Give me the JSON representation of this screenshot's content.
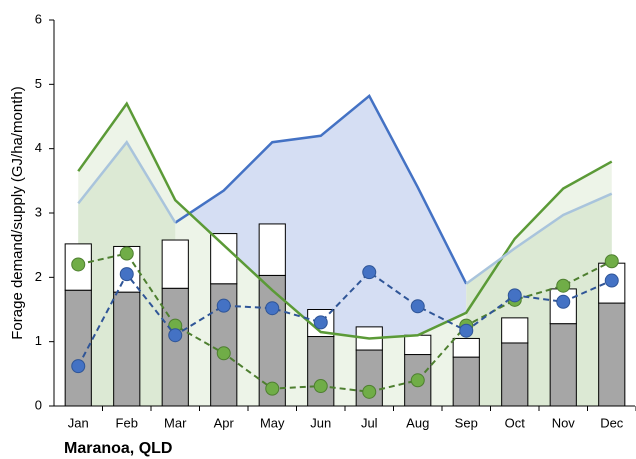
{
  "chart_data": {
    "type": "combo",
    "x_label": "Maranoa, QLD",
    "y_label": "Forage demand/supply (GJ/ha/month)",
    "categories": [
      "Jan",
      "Feb",
      "Mar",
      "Apr",
      "May",
      "Jun",
      "Jul",
      "Aug",
      "Sep",
      "Oct",
      "Nov",
      "Dec"
    ],
    "ylim": [
      0,
      6
    ],
    "yticks": [
      0,
      1,
      2,
      3,
      4,
      5,
      6
    ],
    "grid": false,
    "series": [
      {
        "type": "line",
        "color": "#4472c4",
        "fill": "#d5def3",
        "dash": false,
        "values": [
          null,
          null,
          2.85,
          3.35,
          4.1,
          4.2,
          4.82,
          3.4,
          1.9,
          null,
          null,
          null
        ]
      },
      {
        "type": "line",
        "color": "#5b9a37",
        "fill": "#edf4e8",
        "dash": false,
        "values": [
          3.65,
          4.7,
          3.2,
          2.5,
          1.8,
          1.15,
          1.05,
          1.1,
          1.45,
          2.6,
          3.38,
          3.8
        ]
      },
      {
        "type": "line",
        "color": "#a9c4dc",
        "fill": "#dce9d4",
        "dash": false,
        "values": [
          3.15,
          4.1,
          2.85,
          null,
          null,
          null,
          null,
          null,
          1.9,
          2.45,
          2.97,
          3.3
        ]
      },
      {
        "type": "bar",
        "color": "#a6a6a6",
        "values": [
          1.8,
          1.77,
          1.83,
          1.9,
          2.03,
          1.08,
          0.87,
          0.8,
          0.76,
          0.98,
          1.28,
          1.6
        ]
      },
      {
        "type": "bar",
        "color": "#ffffff",
        "values": [
          0.72,
          0.71,
          0.75,
          0.78,
          0.8,
          0.42,
          0.36,
          0.3,
          0.29,
          0.39,
          0.54,
          0.62
        ]
      },
      {
        "type": "dots",
        "color": "#70ad47",
        "stroke": "#4e7f30",
        "dash": true,
        "values": [
          2.2,
          2.37,
          1.25,
          0.82,
          0.27,
          0.31,
          0.22,
          0.4,
          1.25,
          1.65,
          1.87,
          2.25
        ]
      },
      {
        "type": "dots",
        "color": "#4472c4",
        "stroke": "#2f5597",
        "dash": true,
        "values": [
          0.62,
          2.05,
          1.1,
          1.56,
          1.52,
          1.3,
          2.08,
          1.55,
          1.17,
          1.72,
          1.62,
          1.95
        ]
      }
    ]
  }
}
